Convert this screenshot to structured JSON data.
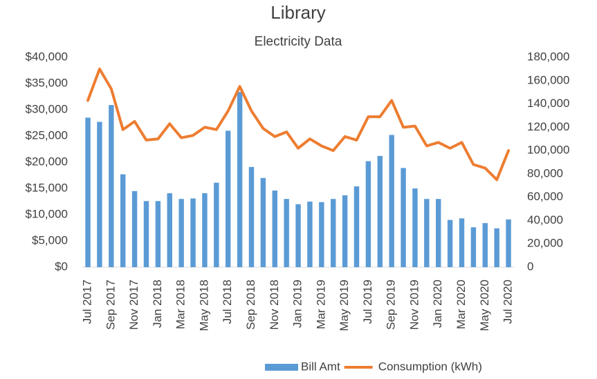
{
  "chart_data": {
    "type": "bar",
    "title": "Library",
    "subtitle": "Electricity Data",
    "categories": [
      "Jul 2017",
      null,
      "Sep 2017",
      null,
      "Nov 2017",
      null,
      "Jan 2018",
      null,
      "Mar 2018",
      null,
      "May 2018",
      null,
      "Jul 2018",
      null,
      "Sep 2018",
      null,
      "Nov 2018",
      null,
      "Jan 2019",
      null,
      "Mar 2019",
      null,
      "May 2019",
      null,
      "Jul 2019",
      null,
      "Sep 2019",
      null,
      "Nov 2019",
      null,
      "Jan 2020",
      null,
      "Mar 2020",
      null,
      "May 2020",
      null,
      "Jul 2020"
    ],
    "series": [
      {
        "name": "Bill Amt",
        "type": "bar",
        "color": "#5b9bd5",
        "values": [
          28500,
          27700,
          30900,
          17700,
          14500,
          12600,
          12600,
          14100,
          13000,
          13100,
          14100,
          16100,
          26000,
          33400,
          19100,
          17000,
          14600,
          13000,
          12000,
          12500,
          12400,
          13000,
          13700,
          15400,
          20200,
          21200,
          25200,
          18900,
          15000,
          13000,
          13000,
          9000,
          9300,
          7600,
          8400,
          7400,
          9100
        ]
      },
      {
        "name": "Consumption (kWh)",
        "type": "line",
        "axis": "y2",
        "color": "#ed7d31",
        "values": [
          143000,
          170000,
          153000,
          118000,
          125000,
          109000,
          110000,
          123000,
          111000,
          113000,
          120000,
          118000,
          134000,
          155000,
          134000,
          119000,
          112000,
          116000,
          102000,
          110000,
          104000,
          100000,
          112000,
          109000,
          129000,
          129000,
          143000,
          120000,
          121000,
          104000,
          107000,
          102000,
          107000,
          88000,
          85000,
          75000,
          100000
        ]
      }
    ],
    "ylim": [
      0,
      40000
    ],
    "yticks": [
      {
        "value": 0,
        "label": "$0"
      },
      {
        "value": 5000,
        "label": "$5,000"
      },
      {
        "value": 10000,
        "label": "$10,000"
      },
      {
        "value": 15000,
        "label": "$15,000"
      },
      {
        "value": 20000,
        "label": "$20,000"
      },
      {
        "value": 25000,
        "label": "$25,000"
      },
      {
        "value": 30000,
        "label": "$30,000"
      },
      {
        "value": 35000,
        "label": "$35,000"
      },
      {
        "value": 40000,
        "label": "$40,000"
      }
    ],
    "y2lim": [
      0,
      180000
    ],
    "y2ticks": [
      0,
      {
        "value": 20000,
        "label": "20,000"
      },
      {
        "value": 40000,
        "label": "40,000"
      },
      {
        "value": 60000,
        "label": "60,000"
      },
      {
        "value": 80000,
        "label": "80,000"
      },
      {
        "value": 100000,
        "label": "100,000"
      },
      {
        "value": 120000,
        "label": "120,000"
      },
      {
        "value": 140000,
        "label": "140,000"
      },
      {
        "value": 160000,
        "label": "160,000"
      },
      {
        "value": 180000,
        "label": "180,000"
      }
    ],
    "grid": false,
    "legend": "bottom"
  }
}
